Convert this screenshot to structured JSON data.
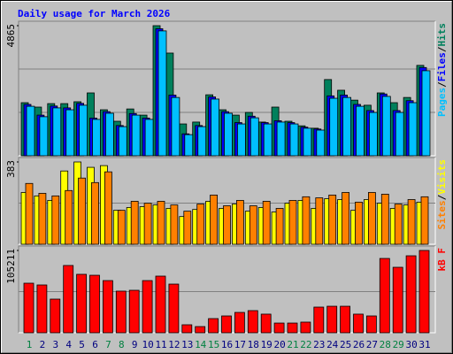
{
  "chart_data": [
    {
      "type": "bar",
      "title": "Daily usage for March 2026",
      "ylim": [
        0,
        4865
      ],
      "yticks": [
        4865
      ],
      "legend_separator": "/",
      "series": [
        {
          "name": "Hits",
          "color": "#00805c",
          "values": [
            1985,
            1820,
            1950,
            1950,
            2020,
            2350,
            1720,
            1290,
            1750,
            1520,
            4865,
            3840,
            1190,
            1260,
            2280,
            1720,
            1520,
            1620,
            1260,
            1820,
            1290,
            1120,
            1030,
            2850,
            2450,
            2080,
            1890,
            2350,
            1985,
            2180,
            3380
          ]
        },
        {
          "name": "Files",
          "color": "#0000ff",
          "values": [
            1920,
            1520,
            1860,
            1790,
            1960,
            1410,
            1650,
            1130,
            1580,
            1410,
            4750,
            2270,
            820,
            1130,
            2200,
            1650,
            1240,
            1480,
            1240,
            1310,
            1240,
            1070,
            1000,
            2240,
            2270,
            1920,
            1690,
            2310,
            1690,
            2060,
            3300
          ]
        },
        {
          "name": "Pages",
          "color": "#00c0ff",
          "values": [
            1850,
            1460,
            1790,
            1720,
            1890,
            1360,
            1590,
            1090,
            1520,
            1360,
            4670,
            2180,
            790,
            1090,
            2120,
            1590,
            1190,
            1420,
            1190,
            1260,
            1190,
            1030,
            960,
            2150,
            2180,
            1850,
            1620,
            2220,
            1620,
            1985,
            3180
          ]
        }
      ]
    },
    {
      "type": "bar",
      "ylim": [
        0,
        383
      ],
      "yticks": [
        383
      ],
      "legend_separator": "/",
      "series": [
        {
          "name": "Visits",
          "color": "#ffff00",
          "values": [
            241,
            225,
            204,
            341,
            383,
            358,
            366,
            158,
            171,
            175,
            183,
            167,
            129,
            162,
            200,
            167,
            187,
            154,
            171,
            150,
            191,
            204,
            167,
            212,
            208,
            158,
            208,
            191,
            167,
            183,
            196
          ]
        },
        {
          "name": "Sites",
          "color": "#ff8000",
          "values": [
            283,
            237,
            225,
            250,
            308,
            287,
            337,
            158,
            200,
            191,
            200,
            183,
            154,
            187,
            229,
            179,
            204,
            179,
            200,
            167,
            204,
            221,
            216,
            229,
            241,
            196,
            241,
            233,
            187,
            208,
            221
          ]
        }
      ]
    },
    {
      "type": "bar",
      "ylim": [
        0,
        105211
      ],
      "yticks": [
        105211
      ],
      "series": [
        {
          "name": "kB F",
          "color": "#ff0000",
          "values": [
            63350,
            61100,
            43000,
            86000,
            74700,
            73500,
            66700,
            53200,
            54300,
            66700,
            72400,
            62200,
            10200,
            7900,
            18100,
            21500,
            26000,
            28300,
            23800,
            12400,
            12400,
            13600,
            32800,
            33900,
            33900,
            23800,
            21500,
            95000,
            83700,
            98400,
            105211
          ]
        }
      ],
      "categories": [
        "1",
        "2",
        "3",
        "4",
        "5",
        "6",
        "7",
        "8",
        "9",
        "10",
        "11",
        "12",
        "13",
        "14",
        "15",
        "16",
        "17",
        "18",
        "19",
        "20",
        "21",
        "22",
        "23",
        "24",
        "25",
        "26",
        "27",
        "28",
        "29",
        "30",
        "31"
      ],
      "category_colors": [
        "#008040",
        "#000080",
        "#000080",
        "#000080",
        "#000080",
        "#000080",
        "#008040",
        "#008040",
        "#000080",
        "#000080",
        "#000080",
        "#000080",
        "#000080",
        "#008040",
        "#008040",
        "#000080",
        "#000080",
        "#000080",
        "#000080",
        "#000080",
        "#008040",
        "#008040",
        "#000080",
        "#000080",
        "#000080",
        "#000080",
        "#000080",
        "#008040",
        "#008040",
        "#000080",
        "#000080"
      ]
    }
  ]
}
